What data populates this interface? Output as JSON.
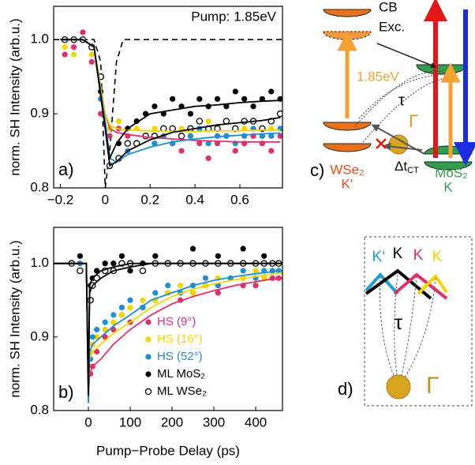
{
  "chart_data": [
    {
      "type": "scatter",
      "panel_label": "a)",
      "annotation": "Pump: 1.85eV",
      "y_label": "norm. SH Intensity (arb.u.)",
      "xlim": [
        -0.23,
        0.79
      ],
      "ylim": [
        0.8,
        1.045
      ],
      "xticks": [
        {
          "value": -0.2,
          "label": "−0.2"
        },
        0,
        0.2,
        0.4,
        0.6
      ],
      "yticks": [
        0.8,
        0.9,
        {
          "value": 1,
          "label": "1.0"
        }
      ],
      "x": [
        -0.18,
        -0.14,
        -0.1,
        -0.06,
        -0.02,
        0.02,
        0.06,
        0.1,
        0.14,
        0.18,
        0.22,
        0.26,
        0.3,
        0.34,
        0.38,
        0.42,
        0.46,
        0.5,
        0.54,
        0.58,
        0.62,
        0.66,
        0.7,
        0.74,
        0.78
      ],
      "fit_x": [
        -0.2,
        -0.1,
        -0.05,
        0,
        0.02,
        0.05,
        0.1,
        0.2,
        0.3,
        0.4,
        0.5,
        0.6,
        0.7,
        0.78
      ],
      "pump_profile": {
        "x": [
          -0.23,
          -0.05,
          -0.02,
          0,
          0.02,
          0.05,
          0.08,
          0.79
        ],
        "values": [
          1,
          1,
          0.97,
          0.8,
          0.85,
          0.97,
          1,
          1
        ]
      },
      "series": [
        {
          "color": "#e0306a",
          "marker": "filled",
          "values": [
            0.98,
            0.99,
            1.01,
            0.97,
            0.9,
            0.87,
            0.88,
            0.87,
            0.86,
            0.87,
            0.86,
            0.87,
            0.86,
            0.85,
            0.87,
            0.86,
            0.84,
            0.86,
            0.87,
            0.85,
            0.86,
            0.87,
            0.86,
            0.85,
            0.87
          ],
          "fit": [
            1,
            1,
            0.99,
            0.9,
            0.88,
            0.875,
            0.872,
            0.868,
            0.866,
            0.864,
            0.863,
            0.862,
            0.862,
            0.862
          ]
        },
        {
          "color": "#f2d600",
          "marker": "filled",
          "values": [
            0.99,
            0.98,
            1.0,
            0.98,
            0.92,
            0.88,
            0.89,
            0.88,
            0.88,
            0.87,
            0.88,
            0.87,
            0.88,
            0.88,
            0.87,
            0.88,
            0.89,
            0.88,
            0.87,
            0.88,
            0.88,
            0.88,
            0.87,
            0.88,
            0.88
          ],
          "fit": [
            1,
            1,
            0.99,
            0.9,
            0.885,
            0.88,
            0.878,
            0.877,
            0.876,
            0.876,
            0.877,
            0.877,
            0.878,
            0.878
          ]
        },
        {
          "color": "#1f8fd0",
          "marker": "filled",
          "values": [
            1.0,
            1.0,
            1.0,
            0.99,
            0.92,
            0.83,
            0.84,
            0.85,
            0.86,
            0.87,
            0.86,
            0.87,
            0.86,
            0.87,
            0.87,
            0.88,
            0.86,
            0.87,
            0.87,
            0.86,
            0.87,
            0.88,
            0.87,
            0.87,
            0.88
          ],
          "fit": [
            1,
            1,
            0.99,
            0.89,
            0.84,
            0.835,
            0.845,
            0.855,
            0.862,
            0.866,
            0.869,
            0.871,
            0.873,
            0.874
          ]
        },
        {
          "color": "#000000",
          "marker": "filled",
          "values": [
            1.0,
            1.0,
            1.0,
            0.99,
            0.93,
            0.83,
            0.86,
            0.88,
            0.89,
            0.9,
            0.91,
            0.9,
            0.92,
            0.91,
            0.9,
            0.92,
            0.91,
            0.92,
            0.91,
            0.93,
            0.92,
            0.91,
            0.92,
            0.93,
            0.92
          ],
          "fit": [
            1,
            1,
            0.99,
            0.88,
            0.84,
            0.86,
            0.88,
            0.9,
            0.905,
            0.91,
            0.912,
            0.915,
            0.917,
            0.918
          ]
        },
        {
          "color": "#000000",
          "marker": "open",
          "values": [
            1.0,
            1.0,
            1.0,
            0.99,
            0.95,
            0.83,
            0.84,
            0.86,
            0.86,
            0.87,
            0.87,
            0.88,
            0.88,
            0.87,
            0.88,
            0.89,
            0.88,
            0.88,
            0.89,
            0.88,
            0.89,
            0.89,
            0.88,
            0.89,
            0.9
          ],
          "fit": [
            1,
            1,
            0.99,
            0.88,
            0.83,
            0.835,
            0.85,
            0.865,
            0.875,
            0.88,
            0.885,
            0.888,
            0.891,
            0.895
          ]
        }
      ]
    },
    {
      "type": "scatter",
      "panel_label": "b)",
      "y_label": "norm. SH Intensity (arb.u.)",
      "x_label": "Pump−Probe Delay (ps)",
      "xlim": [
        -83,
        464
      ],
      "ylim": [
        0.8,
        1.049
      ],
      "xticks": [
        0,
        100,
        200,
        300,
        400
      ],
      "yticks": [
        0.8,
        0.9,
        {
          "value": 1,
          "label": "1.0"
        }
      ],
      "x": [
        -40,
        -20,
        5,
        10,
        20,
        40,
        60,
        80,
        100,
        130,
        160,
        190,
        220,
        250,
        280,
        310,
        340,
        370,
        400,
        420,
        440,
        455
      ],
      "fit_x": [
        -83,
        -5,
        0,
        3,
        10,
        30,
        60,
        100,
        150,
        200,
        250,
        300,
        350,
        400,
        430,
        464
      ],
      "series": [
        {
          "name": "HS (9°)",
          "color": "#e0306a",
          "marker": "filled",
          "values": [
            1.0,
            1.0,
            0.85,
            0.86,
            0.88,
            0.9,
            0.91,
            0.93,
            0.92,
            0.94,
            0.95,
            0.96,
            0.95,
            0.96,
            0.97,
            0.96,
            0.98,
            0.97,
            0.97,
            0.98,
            0.98,
            0.98
          ],
          "fit": [
            1,
            1,
            0.82,
            0.85,
            0.86,
            0.87,
            0.89,
            0.91,
            0.93,
            0.945,
            0.955,
            0.963,
            0.97,
            0.975,
            0.978,
            0.98
          ]
        },
        {
          "name": "HS (16°)",
          "color": "#f2d600",
          "marker": "filled",
          "values": [
            1.0,
            1.0,
            0.88,
            0.89,
            0.9,
            0.91,
            0.92,
            0.93,
            0.94,
            0.95,
            0.95,
            0.96,
            0.97,
            0.96,
            0.97,
            0.98,
            0.98,
            0.98,
            0.99,
            0.98,
            0.99,
            0.99
          ],
          "fit": [
            1,
            1,
            0.82,
            0.87,
            0.88,
            0.89,
            0.905,
            0.92,
            0.94,
            0.955,
            0.965,
            0.972,
            0.978,
            0.982,
            0.985,
            0.987
          ]
        },
        {
          "name": "HS (52°)",
          "color": "#1f8fd0",
          "marker": "filled",
          "values": [
            1.0,
            1.0,
            0.87,
            0.9,
            0.91,
            0.92,
            0.93,
            0.94,
            0.95,
            0.94,
            0.96,
            0.97,
            0.96,
            0.97,
            0.98,
            0.97,
            0.98,
            0.99,
            0.98,
            0.99,
            0.99,
            0.99
          ],
          "fit": [
            1,
            1,
            0.81,
            0.88,
            0.89,
            0.9,
            0.915,
            0.93,
            0.95,
            0.96,
            0.97,
            0.977,
            0.982,
            0.986,
            0.988,
            0.99
          ]
        },
        {
          "name": "ML MoS₂",
          "color": "#000000",
          "marker": "filled",
          "values": [
            1.0,
            1.01,
            0.97,
            0.98,
            0.99,
            1.0,
            1.0,
            1.01,
            0.99,
            1.0,
            1.01,
            1.0,
            1.0,
            1.02,
            1.0,
            1.01,
            1.0,
            1.02,
            1.0,
            1.01,
            1.0,
            1.0
          ],
          "fit": [
            1,
            1,
            0.82,
            0.97,
            0.98,
            0.99,
            0.995,
            1,
            1,
            1,
            1,
            1,
            1,
            1,
            1,
            1
          ]
        },
        {
          "name": "ML WSe₂",
          "color": "#000000",
          "marker": "open",
          "values": [
            1.0,
            0.99,
            0.95,
            0.97,
            0.98,
            0.99,
            0.99,
            1.0,
            1.0,
            0.99,
            1.0,
            1.0,
            1.0,
            1.0,
            1.0,
            1.0,
            1.0,
            1.0,
            1.0,
            1.0,
            1.0,
            1.0
          ],
          "fit": [
            1,
            1,
            0.83,
            0.96,
            0.97,
            0.98,
            0.99,
            0.995,
            1,
            1,
            1,
            1,
            1,
            1,
            1,
            1
          ]
        }
      ]
    }
  ],
  "panel_c": {
    "label": "c)",
    "cb": "CB",
    "exc": "Exc.",
    "pump": "1.85eV",
    "tau": "τ",
    "gamma": "Γ",
    "wse2": "WSe₂",
    "k_prime": "K‘",
    "dt": "Δt",
    "dt_sub": "CT",
    "mos2": "MoS₂",
    "k": "K"
  },
  "panel_d": {
    "label": "d)",
    "valleys": [
      "K‘",
      "K",
      "K",
      "K"
    ],
    "tau": "τ",
    "gamma": "Γ"
  }
}
